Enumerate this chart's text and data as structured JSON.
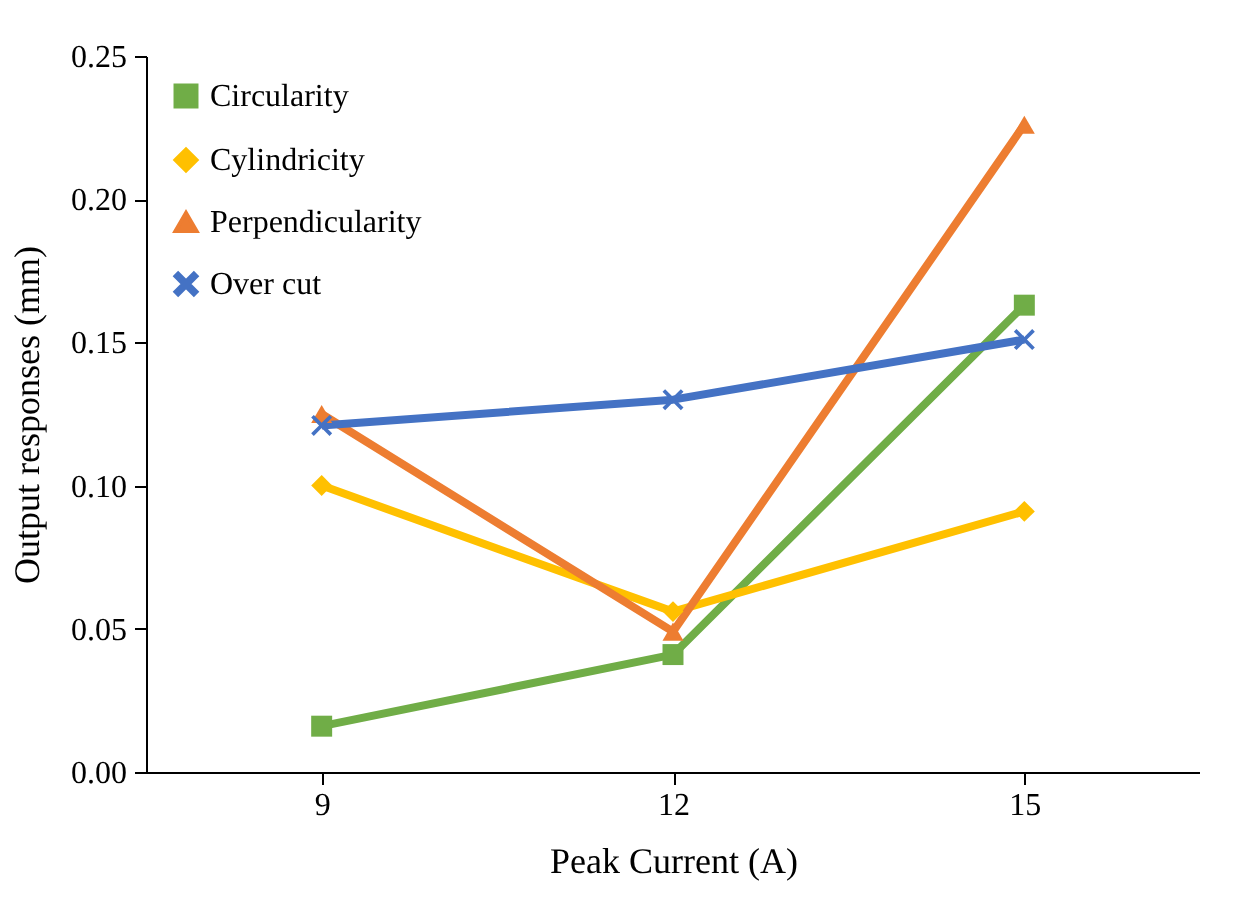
{
  "chart_data": {
    "type": "line",
    "xlabel": "Peak Current (A)",
    "ylabel": "Output responses (mm)",
    "categories": [
      "9",
      "12",
      "15"
    ],
    "series": [
      {
        "name": "Circularity",
        "color": "#70ad47",
        "marker": "square",
        "values": [
          0.016,
          0.041,
          0.163
        ]
      },
      {
        "name": "Cylindricity",
        "color": "#ffc000",
        "marker": "diamond",
        "values": [
          0.1,
          0.056,
          0.091
        ]
      },
      {
        "name": "Perpendicularity",
        "color": "#ed7d31",
        "marker": "triangle",
        "values": [
          0.125,
          0.049,
          0.226
        ]
      },
      {
        "name": "Over cut",
        "color": "#4472c4",
        "marker": "cross",
        "values": [
          0.121,
          0.13,
          0.151
        ]
      }
    ],
    "ylim": [
      0,
      0.25
    ],
    "yticks": [
      {
        "value": 0,
        "label": "0.00"
      },
      {
        "value": 0.05,
        "label": "0.05"
      },
      {
        "value": 0.1,
        "label": "0.10"
      },
      {
        "value": 0.15,
        "label": "0.15"
      },
      {
        "value": 0.2,
        "label": "0.20"
      },
      {
        "value": 0.25,
        "label": "0.25"
      }
    ],
    "grid": false,
    "legend": "top left",
    "line_style": "solid"
  }
}
